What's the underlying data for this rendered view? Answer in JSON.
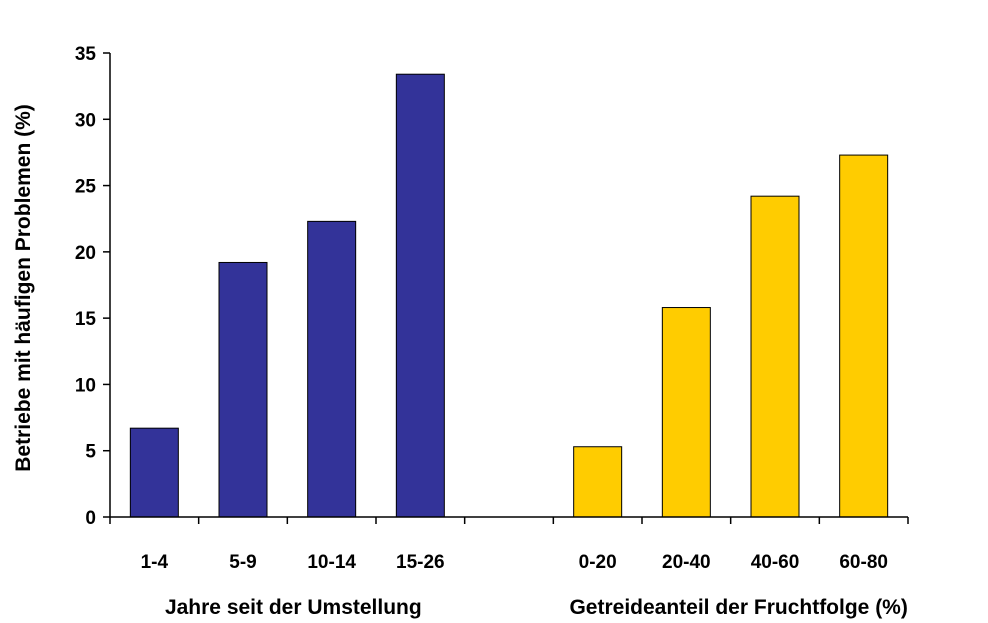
{
  "chart_data": {
    "type": "bar",
    "ylabel": "Betriebe mit häufigen Problemen (%)",
    "ylim": [
      0,
      35
    ],
    "yticks": [
      0,
      5,
      10,
      15,
      20,
      25,
      30,
      35
    ],
    "grid": false,
    "legend": "none",
    "categories": [
      "1-4",
      "5-9",
      "10-14",
      "15-26",
      "",
      "0-20",
      "20-40",
      "40-60",
      "60-80"
    ],
    "group_labels": [
      "Jahre seit der Umstellung",
      "Getreideanteil der Fruchtfolge (%)"
    ],
    "series": [
      {
        "values": [
          6.7,
          19.2,
          22.3,
          33.4,
          null,
          null,
          null,
          null,
          null
        ],
        "color": "#333399"
      },
      {
        "values": [
          null,
          null,
          null,
          null,
          null,
          5.3,
          15.8,
          24.2,
          27.3
        ],
        "color": "#FFCC00"
      }
    ]
  }
}
